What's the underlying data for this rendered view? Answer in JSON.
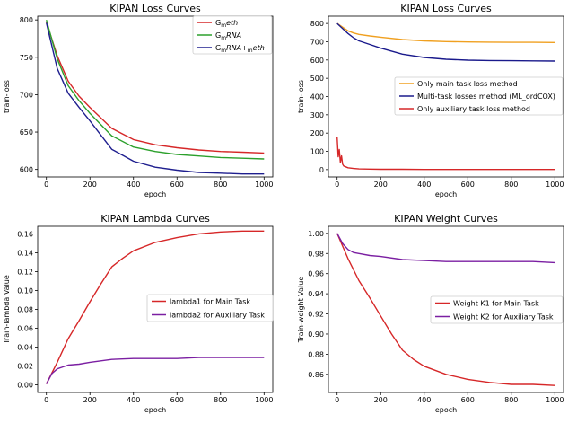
{
  "chart_data": [
    {
      "type": "line",
      "title": "KIPAN Loss Curves",
      "xlabel": "epoch",
      "ylabel": "train-loss",
      "xlim": [
        -40,
        1040
      ],
      "ylim": [
        590,
        805
      ],
      "xticks": [
        "0",
        "200",
        "400",
        "600",
        "800",
        "1000"
      ],
      "yticks": [
        "600",
        "650",
        "700",
        "750",
        "800"
      ],
      "legend_position": "top-right",
      "series": [
        {
          "name": "G_meth",
          "legend_base": "G",
          "legend_sub": "m",
          "legend_rest": "eth",
          "color": "#d62728",
          "x": [
            0,
            50,
            100,
            150,
            200,
            300,
            400,
            500,
            600,
            700,
            800,
            900,
            1000
          ],
          "y": [
            797,
            752,
            718,
            698,
            683,
            655,
            640,
            633,
            629,
            626,
            624,
            623,
            622
          ]
        },
        {
          "name": "G_mRNA",
          "legend_base": "G",
          "legend_sub": "m",
          "legend_rest": "RNA",
          "color": "#2ca02c",
          "x": [
            0,
            50,
            100,
            150,
            200,
            300,
            400,
            500,
            600,
            700,
            800,
            900,
            1000
          ],
          "y": [
            800,
            748,
            712,
            692,
            675,
            645,
            630,
            624,
            620,
            618,
            616,
            615,
            614
          ]
        },
        {
          "name": "G_mRNA+_meth",
          "legend_base": "G",
          "legend_sub": "m",
          "legend_rest": "RNA+",
          "legend_sub2": "m",
          "legend_rest2": "eth",
          "color": "#1f1f8f",
          "x": [
            0,
            50,
            100,
            150,
            200,
            300,
            400,
            500,
            600,
            700,
            800,
            900,
            1000
          ],
          "y": [
            796,
            735,
            702,
            683,
            665,
            627,
            611,
            603,
            599,
            596,
            595,
            594,
            594
          ]
        }
      ]
    },
    {
      "type": "line",
      "title": "KIPAN Loss Curves",
      "xlabel": "epoch",
      "ylabel": "train-loss",
      "xlim": [
        -40,
        1040
      ],
      "ylim": [
        -40,
        840
      ],
      "xticks": [
        "0",
        "200",
        "400",
        "600",
        "800",
        "1000"
      ],
      "yticks": [
        "0",
        "100",
        "200",
        "300",
        "400",
        "500",
        "600",
        "700",
        "800"
      ],
      "legend_position": "center-right",
      "series": [
        {
          "name": "Only main task loss method",
          "color": "#f0a020",
          "x": [
            0,
            25,
            50,
            75,
            100,
            150,
            200,
            300,
            400,
            500,
            600,
            700,
            800,
            900,
            1000
          ],
          "y": [
            800,
            780,
            760,
            748,
            740,
            732,
            725,
            712,
            705,
            701,
            699,
            698,
            697,
            697,
            696
          ]
        },
        {
          "name": "Multi-task losses method (ML_ordCOX)",
          "color": "#1a1a8c",
          "x": [
            0,
            25,
            50,
            75,
            100,
            150,
            200,
            300,
            400,
            500,
            600,
            700,
            800,
            900,
            1000
          ],
          "y": [
            800,
            772,
            745,
            722,
            705,
            685,
            665,
            632,
            614,
            604,
            599,
            597,
            596,
            595,
            594
          ]
        },
        {
          "name": "Only auxiliary task loss method",
          "color": "#d62728",
          "x": [
            0,
            5,
            10,
            15,
            20,
            25,
            30,
            40,
            50,
            75,
            100,
            150,
            200,
            300,
            400,
            500,
            600,
            800,
            1000
          ],
          "y": [
            180,
            70,
            110,
            40,
            75,
            30,
            20,
            15,
            10,
            6,
            4,
            3,
            2,
            2,
            1,
            1,
            1,
            1,
            1
          ]
        }
      ]
    },
    {
      "type": "line",
      "title": "KIPAN Lambda Curves",
      "xlabel": "epoch",
      "ylabel": "Train-lambda Value",
      "xlim": [
        -40,
        1040
      ],
      "ylim": [
        -0.008,
        0.168
      ],
      "xticks": [
        "0",
        "200",
        "400",
        "600",
        "800",
        "1000"
      ],
      "yticks": [
        "0.00",
        "0.02",
        "0.04",
        "0.06",
        "0.08",
        "0.10",
        "0.12",
        "0.14",
        "0.16"
      ],
      "legend_position": "center-right",
      "series": [
        {
          "name": "lambda1 for Main Task",
          "color": "#d62728",
          "x": [
            0,
            50,
            100,
            150,
            200,
            250,
            300,
            350,
            400,
            500,
            600,
            700,
            800,
            900,
            1000
          ],
          "y": [
            0.001,
            0.024,
            0.049,
            0.068,
            0.088,
            0.107,
            0.125,
            0.134,
            0.142,
            0.151,
            0.156,
            0.16,
            0.162,
            0.163,
            0.163
          ]
        },
        {
          "name": "lambda2 for Auxiliary Task",
          "color": "#7b1fa2",
          "x": [
            0,
            25,
            50,
            75,
            100,
            150,
            200,
            300,
            400,
            500,
            600,
            700,
            800,
            900,
            1000
          ],
          "y": [
            0.001,
            0.012,
            0.017,
            0.019,
            0.021,
            0.022,
            0.024,
            0.027,
            0.028,
            0.028,
            0.028,
            0.029,
            0.029,
            0.029,
            0.029
          ]
        }
      ]
    },
    {
      "type": "line",
      "title": "KIPAN Weight Curves",
      "xlabel": "epoch",
      "ylabel": "Train-weight Value",
      "xlim": [
        -40,
        1040
      ],
      "ylim": [
        0.842,
        1.007
      ],
      "xticks": [
        "0",
        "200",
        "400",
        "600",
        "800",
        "1000"
      ],
      "yticks": [
        "0.86",
        "0.88",
        "0.90",
        "0.92",
        "0.94",
        "0.96",
        "0.98",
        "1.00"
      ],
      "legend_position": "center-right",
      "series": [
        {
          "name": "Weight K1 for Main Task",
          "color": "#d62728",
          "x": [
            0,
            50,
            100,
            150,
            200,
            250,
            300,
            350,
            400,
            500,
            600,
            700,
            800,
            900,
            1000
          ],
          "y": [
            1.0,
            0.975,
            0.953,
            0.936,
            0.918,
            0.9,
            0.884,
            0.875,
            0.868,
            0.86,
            0.855,
            0.852,
            0.85,
            0.85,
            0.849
          ]
        },
        {
          "name": "Weight K2 for Auxiliary Task",
          "color": "#7b1fa2",
          "x": [
            0,
            25,
            50,
            75,
            100,
            150,
            200,
            300,
            400,
            500,
            600,
            700,
            800,
            900,
            1000
          ],
          "y": [
            1.0,
            0.99,
            0.984,
            0.981,
            0.98,
            0.978,
            0.977,
            0.974,
            0.973,
            0.972,
            0.972,
            0.972,
            0.972,
            0.972,
            0.971
          ]
        }
      ]
    }
  ]
}
